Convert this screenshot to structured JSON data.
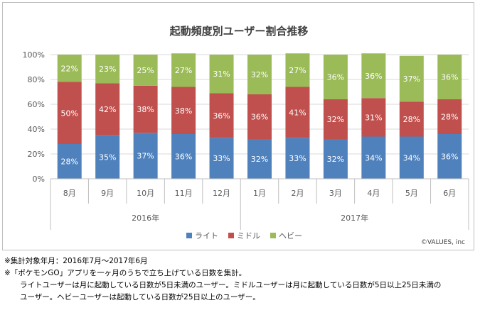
{
  "chart_data": {
    "type": "bar",
    "stacked": true,
    "percent": true,
    "title": "起動頻度別ユーザー割合推移",
    "categories": [
      "8月",
      "9月",
      "10月",
      "11月",
      "12月",
      "1月",
      "2月",
      "3月",
      "4月",
      "5月",
      "6月"
    ],
    "groups": [
      {
        "label": "2016年",
        "categories": [
          "8月",
          "9月",
          "10月",
          "11月",
          "12月"
        ]
      },
      {
        "label": "2017年",
        "categories": [
          "1月",
          "2月",
          "3月",
          "4月",
          "5月",
          "6月"
        ]
      }
    ],
    "series": [
      {
        "name": "ライト",
        "color": "#4f81bd",
        "values": [
          28,
          35,
          37,
          36,
          33,
          32,
          33,
          32,
          34,
          34,
          36
        ]
      },
      {
        "name": "ミドル",
        "color": "#c0504d",
        "values": [
          50,
          42,
          38,
          38,
          36,
          36,
          41,
          32,
          31,
          28,
          28
        ]
      },
      {
        "name": "ヘビー",
        "color": "#9bbb59",
        "values": [
          22,
          23,
          25,
          27,
          31,
          32,
          27,
          36,
          36,
          37,
          36
        ]
      }
    ],
    "ylim": [
      0,
      100
    ],
    "yticks": [
      "0%",
      "20%",
      "40%",
      "60%",
      "80%",
      "100%"
    ],
    "grid": true,
    "legend_position": "bottom",
    "credit": "©VALUES, inc"
  },
  "notes": [
    "※集計対象年月：2016年7月～2017年6月",
    "※「ポケモンGO」アプリを一ヶ月のうちで立ち上げている日数を集計。",
    "ライトユーザーは月に起動している日数が5日未満のユーザー。ミドルユーザーは月に起動している日数が5日以上25日未満の",
    "ユーザー。ヘビーユーザーは起動している日数が25日以上のユーザー。"
  ]
}
